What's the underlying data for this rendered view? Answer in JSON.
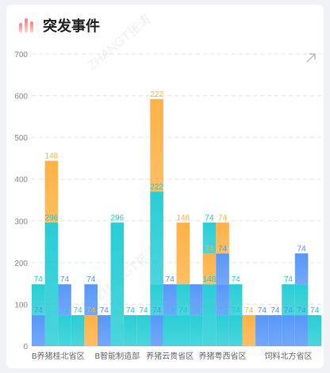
{
  "header": {
    "title": "突发事件",
    "icon": "bar-chart-icon"
  },
  "watermark": "ZHANGT张涛",
  "colors": {
    "teal": "#1ecbd3",
    "blue": "#4f92f8",
    "orange": "#ffae3c",
    "grid": "#e3e3e3",
    "axis_text": "#888888"
  },
  "chart_data": {
    "type": "bar",
    "stacked": true,
    "title": "突发事件",
    "xlabel": "",
    "ylabel": "",
    "ylim": [
      0,
      700
    ],
    "yticks": [
      0,
      100,
      200,
      300,
      400,
      500,
      600,
      700
    ],
    "grid": true,
    "x_tick_labels": [
      "B养猪桂北省区",
      "B智能制造部",
      "养猪云贵省区",
      "养猪粤西省区",
      "饲料北方省区"
    ],
    "bars": [
      {
        "group": 0,
        "segments": [
          {
            "v": 74,
            "c": "blue",
            "label": "74",
            "lc": "blue"
          },
          {
            "v": 74,
            "c": "teal",
            "label": "74",
            "lc": "teal"
          }
        ]
      },
      {
        "group": 0,
        "segments": [
          {
            "v": 296,
            "c": "teal",
            "label": "296",
            "lc": "teal"
          },
          {
            "v": 148,
            "c": "orange",
            "label": "148",
            "lc": "orange"
          }
        ]
      },
      {
        "group": 0,
        "segments": [
          {
            "v": 74,
            "c": "teal",
            "label": "74",
            "lc": "teal"
          },
          {
            "v": 74,
            "c": "blue",
            "label": "74",
            "lc": "blue"
          }
        ]
      },
      {
        "group": 0,
        "segments": [
          {
            "v": 74,
            "c": "teal",
            "label": "74",
            "lc": "teal"
          }
        ]
      },
      {
        "group": 1,
        "segments": [
          {
            "v": 74,
            "c": "orange",
            "label": "74",
            "lc": "orange"
          },
          {
            "v": 74,
            "c": "blue",
            "label": "74",
            "lc": "blue"
          }
        ]
      },
      {
        "group": 1,
        "segments": [
          {
            "v": 74,
            "c": "blue",
            "label": "74",
            "lc": "blue"
          }
        ]
      },
      {
        "group": 1,
        "segments": [
          {
            "v": 296,
            "c": "teal",
            "label": "296",
            "lc": "teal"
          }
        ]
      },
      {
        "group": 1,
        "segments": [
          {
            "v": 74,
            "c": "teal",
            "label": "74",
            "lc": "teal"
          }
        ]
      },
      {
        "group": 1,
        "segments": [
          {
            "v": 74,
            "c": "teal",
            "label": "74",
            "lc": "teal"
          }
        ]
      },
      {
        "group": 2,
        "segments": [
          {
            "v": 74,
            "c": "blue",
            "label": "74",
            "lc": "blue"
          },
          {
            "v": 74,
            "c": "teal",
            "label": "",
            "lc": "teal"
          },
          {
            "v": 222,
            "c": "teal",
            "label": "222",
            "lc": "teal"
          },
          {
            "v": 222,
            "c": "orange",
            "label": "222",
            "lc": "orange"
          }
        ]
      },
      {
        "group": 2,
        "segments": [
          {
            "v": 74,
            "c": "teal",
            "label": "74",
            "lc": "teal"
          },
          {
            "v": 74,
            "c": "blue",
            "label": "74",
            "lc": "blue"
          }
        ]
      },
      {
        "group": 2,
        "segments": [
          {
            "v": 74,
            "c": "teal",
            "label": "74",
            "lc": "teal"
          },
          {
            "v": 74,
            "c": "teal",
            "label": "",
            "lc": "teal"
          },
          {
            "v": 148,
            "c": "orange",
            "label": "148",
            "lc": "orange"
          }
        ]
      },
      {
        "group": 3,
        "segments": [
          {
            "v": 74,
            "c": "teal",
            "label": "74",
            "lc": "teal"
          },
          {
            "v": 74,
            "c": "blue",
            "label": "",
            "lc": "blue"
          }
        ]
      },
      {
        "group": 3,
        "segments": [
          {
            "v": 148,
            "c": "teal",
            "label": "148",
            "lc": "teal"
          },
          {
            "v": 74,
            "c": "orange",
            "label": "74",
            "lc": "orange"
          },
          {
            "v": 74,
            "c": "teal",
            "label": "74",
            "lc": "teal"
          }
        ]
      },
      {
        "group": 3,
        "segments": [
          {
            "v": 74,
            "c": "teal",
            "label": "74",
            "lc": "teal"
          },
          {
            "v": 74,
            "c": "blue",
            "label": "",
            "lc": "blue"
          },
          {
            "v": 74,
            "c": "blue",
            "label": "74",
            "lc": "blue"
          },
          {
            "v": 74,
            "c": "orange",
            "label": "74",
            "lc": "orange"
          }
        ]
      },
      {
        "group": 3,
        "segments": [
          {
            "v": 74,
            "c": "teal",
            "label": "74",
            "lc": "teal"
          },
          {
            "v": 74,
            "c": "teal",
            "label": "74",
            "lc": "teal"
          }
        ]
      },
      {
        "group": 3,
        "segments": [
          {
            "v": 74,
            "c": "orange",
            "label": "74",
            "lc": "orange"
          }
        ]
      },
      {
        "group": 4,
        "segments": [
          {
            "v": 74,
            "c": "blue",
            "label": "74",
            "lc": "blue"
          }
        ]
      },
      {
        "group": 4,
        "segments": [
          {
            "v": 74,
            "c": "blue",
            "label": "74",
            "lc": "blue"
          }
        ]
      },
      {
        "group": 4,
        "segments": [
          {
            "v": 74,
            "c": "blue",
            "label": "74",
            "lc": "blue"
          },
          {
            "v": 74,
            "c": "teal",
            "label": "74",
            "lc": "teal"
          }
        ]
      },
      {
        "group": 4,
        "segments": [
          {
            "v": 74,
            "c": "blue",
            "label": "74",
            "lc": "blue"
          },
          {
            "v": 74,
            "c": "teal",
            "label": "",
            "lc": "teal"
          },
          {
            "v": 74,
            "c": "blue",
            "label": "74",
            "lc": "blue"
          }
        ]
      },
      {
        "group": 4,
        "segments": [
          {
            "v": 74,
            "c": "teal",
            "label": "74",
            "lc": "teal"
          }
        ]
      }
    ]
  }
}
